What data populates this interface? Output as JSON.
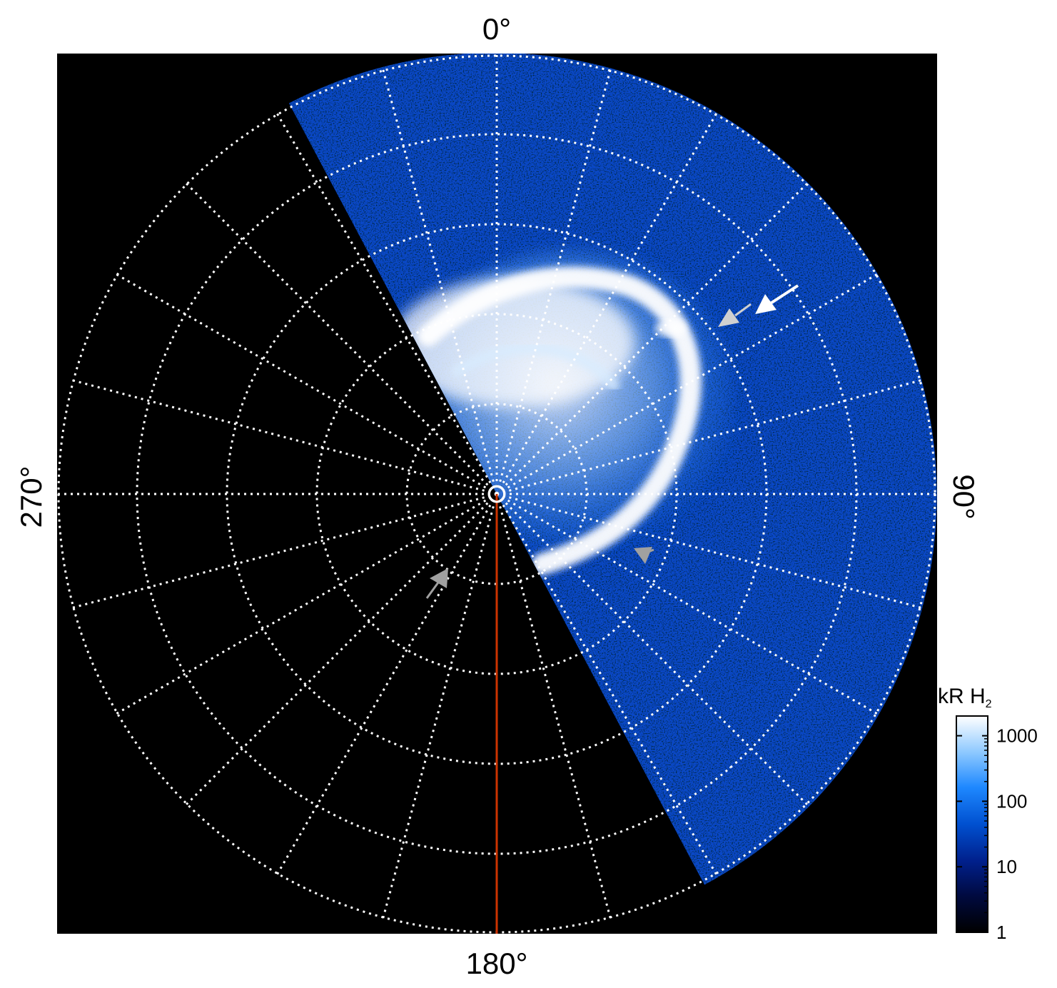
{
  "figure": {
    "angle_labels": {
      "top": "0°",
      "right": "90°",
      "bottom": "180°",
      "left": "270°"
    },
    "colorbar": {
      "title": "kR H",
      "title_subscript": "2",
      "scale": "log",
      "range": [
        1,
        2000
      ],
      "ticks": [
        {
          "value": 1,
          "label": "1"
        },
        {
          "value": 10,
          "label": "10"
        },
        {
          "value": 100,
          "label": "100"
        },
        {
          "value": 1000,
          "label": "1000"
        }
      ],
      "colors": [
        "#000000",
        "#000a40",
        "#00208c",
        "#0050d0",
        "#1e88ff",
        "#8cc8ff",
        "#ffffff"
      ]
    },
    "grid": {
      "style": "dotted",
      "color": "#ffffff",
      "rings": 5,
      "spokes_every_deg": 15
    },
    "reference_line_color": "#cc3300",
    "arrow_colors": {
      "white": "#ffffff",
      "light_gray": "#d0d0d0",
      "gray": "#a0a0a0"
    }
  }
}
